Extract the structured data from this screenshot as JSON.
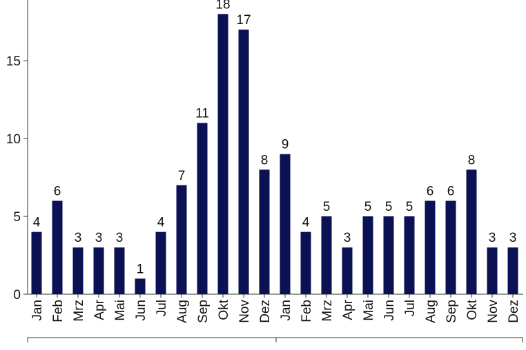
{
  "chart_data": {
    "type": "bar",
    "categories": [
      "Jan",
      "Feb",
      "Mrz",
      "Apr",
      "Mai",
      "Jun",
      "Jul",
      "Aug",
      "Sep",
      "Okt",
      "Nov",
      "Dez",
      "Jan",
      "Feb",
      "Mrz",
      "Apr",
      "Mai",
      "Jun",
      "Jul",
      "Aug",
      "Sep",
      "Okt",
      "Nov",
      "Dez"
    ],
    "values": [
      4,
      6,
      3,
      3,
      3,
      1,
      4,
      7,
      11,
      18,
      17,
      8,
      9,
      4,
      5,
      3,
      5,
      5,
      5,
      6,
      6,
      8,
      3,
      3
    ],
    "color": "#0b1152",
    "ylim": [
      0,
      18.9
    ],
    "yticks": [
      0,
      5,
      10,
      15
    ],
    "grid": false
  }
}
